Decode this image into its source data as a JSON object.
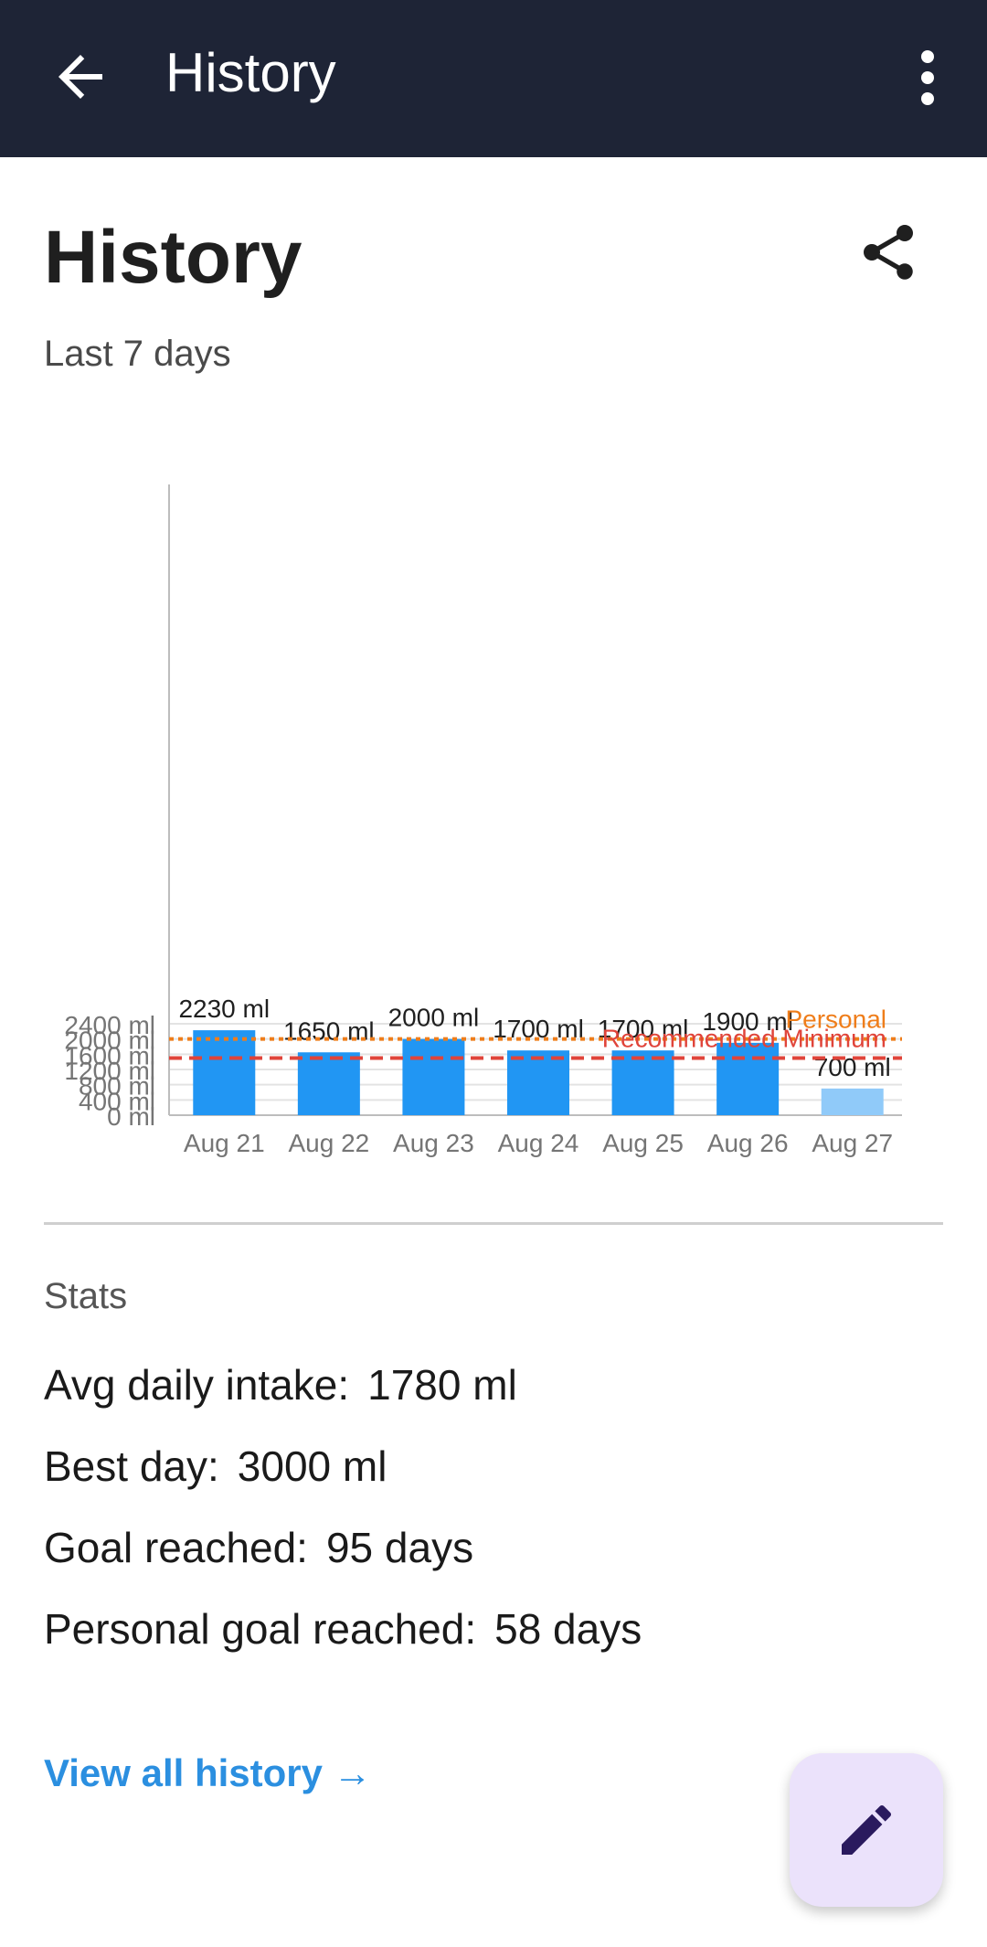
{
  "appbar": {
    "title": "History",
    "back_icon": "arrow-left-icon",
    "more_icon": "more-vert-icon"
  },
  "header": {
    "title": "History",
    "subtitle": "Last 7 days",
    "share_icon": "share-icon"
  },
  "chart_data": {
    "type": "bar",
    "categories": [
      "Aug 21",
      "Aug 22",
      "Aug 23",
      "Aug 24",
      "Aug 25",
      "Aug 26",
      "Aug 27"
    ],
    "values": [
      2230,
      1650,
      2000,
      1700,
      1700,
      1900,
      700
    ],
    "value_labels": [
      "2230 ml",
      "1650 ml",
      "2000 ml",
      "1700 ml",
      "1700 ml",
      "1900 ml",
      "700 ml"
    ],
    "ylim": [
      0,
      2400
    ],
    "yticks": [
      0,
      400,
      800,
      1200,
      1600,
      2000,
      2400
    ],
    "ytick_labels": [
      "0 ml",
      "400 ml",
      "800 ml",
      "1200 ml",
      "1600 ml",
      "2000 ml",
      "2400 ml"
    ],
    "grid": true,
    "bar_color": "#2196f3",
    "current_day_color": "#90caf9",
    "reference_lines": [
      {
        "label": "Personal",
        "value": 2000,
        "color": "#ef7d1a",
        "style": "dotted"
      },
      {
        "label": "Recommended Minimum",
        "value": 1500,
        "color": "#e0443a",
        "style": "dashed"
      }
    ]
  },
  "stats": {
    "heading": "Stats",
    "items": [
      {
        "label": "Avg daily intake:",
        "value": "1780 ml"
      },
      {
        "label": "Best day:",
        "value": "3000 ml"
      },
      {
        "label": "Goal reached:",
        "value": "95 days"
      },
      {
        "label": "Personal goal reached:",
        "value": "58 days"
      }
    ]
  },
  "links": {
    "view_all": "View all history →"
  },
  "fab": {
    "icon": "pencil-icon",
    "color": "#ebe2fb"
  }
}
